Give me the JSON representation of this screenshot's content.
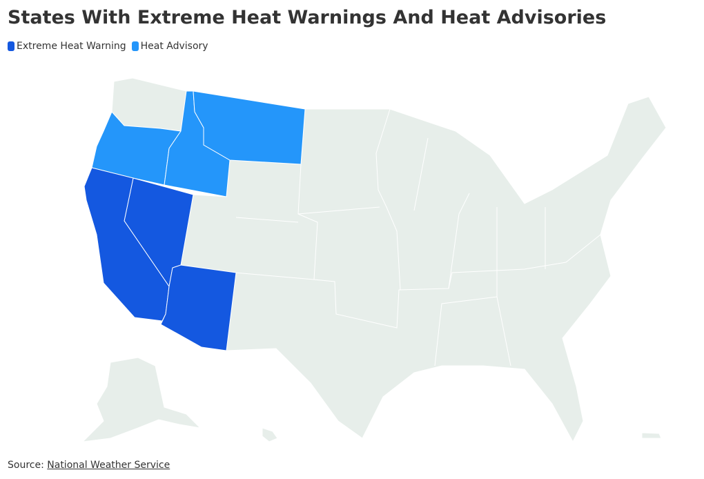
{
  "header": {
    "title": "States With Extreme Heat Warnings And Heat Advisories"
  },
  "legend": [
    {
      "label": "Extreme Heat Warning",
      "color": "#1458e0"
    },
    {
      "label": "Heat Advisory",
      "color": "#2496fa"
    }
  ],
  "footer": {
    "prefix": "Source:",
    "link": "National Weather Service"
  }
}
